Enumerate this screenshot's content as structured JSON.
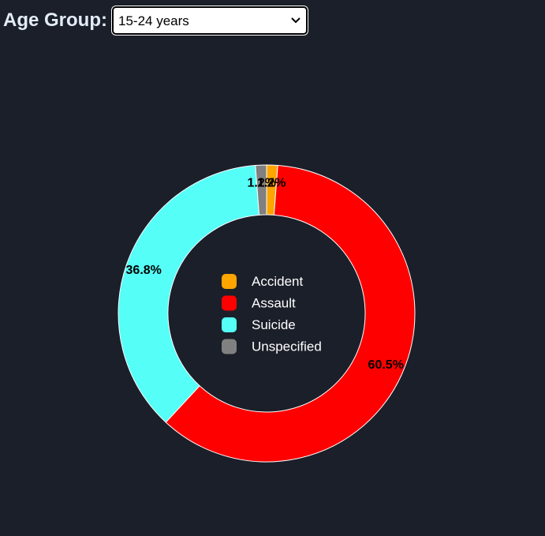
{
  "header": {
    "label": "Age Group:",
    "selected_value": "15-24 years"
  },
  "colors": {
    "background": "#1b1f29",
    "Accident": "#ffa500",
    "Assault": "#ff0000",
    "Suicide": "#55fff7",
    "Unspecified": "#808080"
  },
  "chart_data": {
    "type": "pie",
    "donut": true,
    "legend_placement": "center",
    "categories": [
      "Accident",
      "Assault",
      "Suicide",
      "Unspecified"
    ],
    "values": [
      1.2,
      60.5,
      36.8,
      1.2
    ],
    "data_labels": [
      "1.2%",
      "60.5%",
      "36.8%",
      "1.2%"
    ]
  }
}
